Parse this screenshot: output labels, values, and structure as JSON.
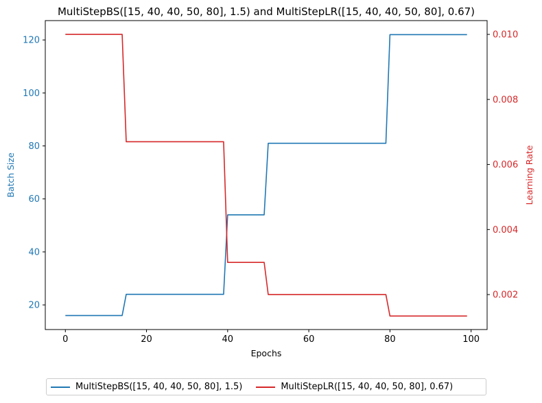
{
  "chart_data": {
    "type": "line",
    "title": "MultiStepBS([15, 40, 40, 50, 80], 1.5) and MultiStepLR([15, 40, 40, 50, 80], 0.67)",
    "xlabel": "Epochs",
    "ylabel_left": "Batch Size",
    "ylabel_right": "Learning Rate",
    "xlim": [
      -4.95,
      103.95
    ],
    "ylim_left": [
      10.7,
      127.3
    ],
    "ylim_right": [
      0.000925,
      0.010424
    ],
    "xticks": [
      "0",
      "20",
      "40",
      "60",
      "80",
      "100"
    ],
    "yticks_left": [
      "20",
      "40",
      "60",
      "80",
      "100",
      "120"
    ],
    "yticks_right": [
      "0.002",
      "0.004",
      "0.006",
      "0.008",
      "0.010"
    ],
    "grid": false,
    "legend_position": "bottom-center",
    "series": [
      {
        "name": "MultiStepBS([15, 40, 40, 50, 80], 1.5)",
        "axis": "left",
        "color": "#1f77b4",
        "x": [
          0,
          14,
          15,
          39,
          40,
          49,
          50,
          79,
          80,
          99
        ],
        "y": [
          16,
          16,
          24,
          24,
          54,
          54,
          81,
          81,
          122,
          122
        ]
      },
      {
        "name": "MultiStepLR([15, 40, 40, 50, 80], 0.67)",
        "axis": "right",
        "color": "#d62728",
        "x": [
          0,
          14,
          15,
          39,
          40,
          49,
          50,
          79,
          80,
          99
        ],
        "y": [
          0.01,
          0.01,
          0.0067,
          0.0067,
          0.00299,
          0.00299,
          0.002,
          0.002,
          0.00134,
          0.00134
        ]
      }
    ]
  }
}
